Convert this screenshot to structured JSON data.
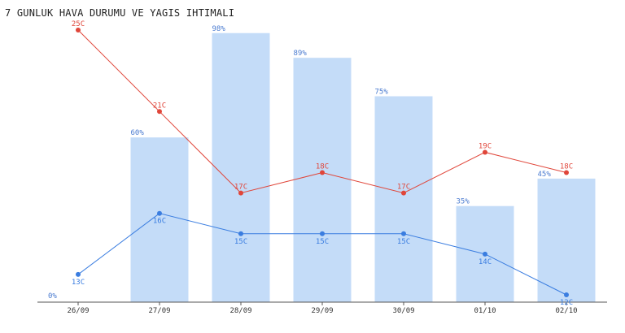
{
  "chart_data": {
    "type": "bar",
    "title": "7 GUNLUK HAVA DURUMU VE YAGIS IHTIMALI",
    "categories": [
      "26/09",
      "27/09",
      "28/09",
      "29/09",
      "30/09",
      "01/10",
      "02/10"
    ],
    "precipitation": {
      "values": [
        0,
        60,
        98,
        89,
        75,
        35,
        45
      ],
      "labels": [
        "0%",
        "60%",
        "98%",
        "89%",
        "75%",
        "35%",
        "45%"
      ],
      "ylim": [
        0,
        100
      ],
      "color": "#c4dcf8",
      "label_color": "#4a7bd0"
    },
    "series": [
      {
        "values": [
          25,
          21,
          17,
          18,
          17,
          19,
          18
        ],
        "labels": [
          "25C",
          "21C",
          "17C",
          "18C",
          "17C",
          "19C",
          "18C"
        ],
        "color": "#e0463a"
      },
      {
        "values": [
          13,
          16,
          15,
          15,
          15,
          14,
          12
        ],
        "labels": [
          "13C",
          "16C",
          "15C",
          "15C",
          "15C",
          "14C",
          "12C"
        ],
        "color": "#3a7de0"
      }
    ],
    "temperature_ylim": [
      12,
      25
    ],
    "legend": "none",
    "grid": false
  }
}
